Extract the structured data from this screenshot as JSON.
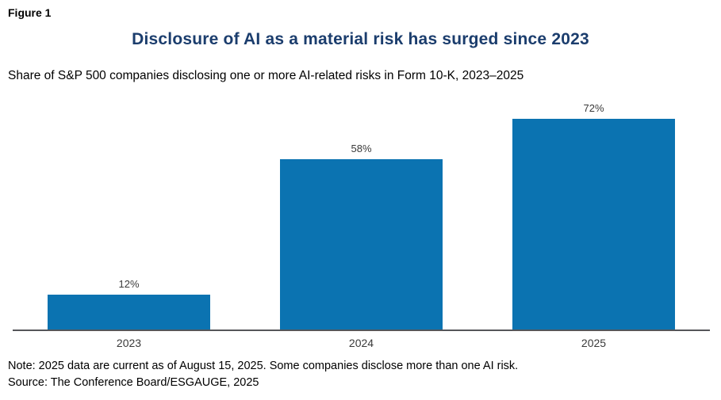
{
  "figure_label": "Figure 1",
  "title": "Disclosure of AI as a material risk has surged since 2023",
  "subtitle": "Share of S&P 500 companies disclosing one or more AI-related risks in Form 10-K, 2023–2025",
  "note": "Note: 2025 data are current as of August 15, 2025. Some companies disclose more than one AI risk.",
  "source": "Source: The Conference Board/ESGAUGE, 2025",
  "colors": {
    "bar": "#0B73B1",
    "title": "#1B3D6D",
    "axis": "#55565A",
    "data_label": "#3a3a3a"
  },
  "chart_data": {
    "type": "bar",
    "categories": [
      "2023",
      "2024",
      "2025"
    ],
    "values": [
      12,
      58,
      72
    ],
    "data_labels": [
      "12%",
      "58%",
      "72%"
    ],
    "title": "Disclosure of AI as a material risk has surged since 2023",
    "subtitle": "Share of S&P 500 companies disclosing one or more AI-related risks in Form 10-K, 2023–2025",
    "xlabel": "",
    "ylabel": "",
    "ylim": [
      0,
      80
    ],
    "grid": false,
    "legend": "none",
    "y_axis_visible": false,
    "bar_color": "#0B73B1"
  }
}
